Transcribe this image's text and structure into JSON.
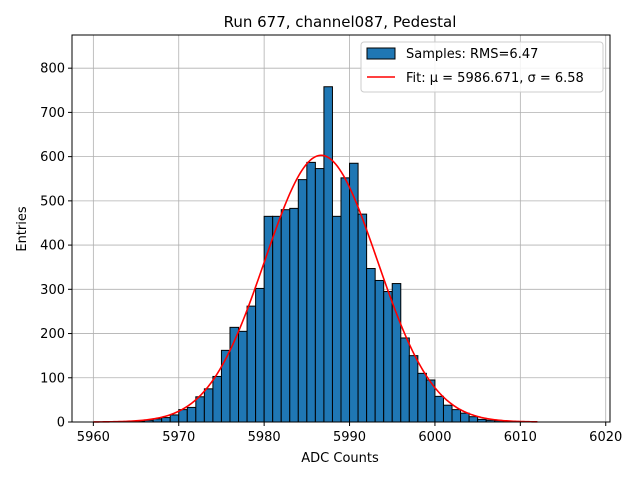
{
  "chart_data": {
    "type": "bar",
    "title": "Run 677, channel087, Pedestal",
    "xlabel": "ADC Counts",
    "ylabel": "Entries",
    "xlim": [
      5957.5,
      6020.5
    ],
    "ylim": [
      0,
      875
    ],
    "xticks": [
      5960,
      5970,
      5980,
      5990,
      6000,
      6010,
      6020
    ],
    "yticks": [
      0,
      100,
      200,
      300,
      400,
      500,
      600,
      700,
      800
    ],
    "grid": true,
    "legend_position": "top-right",
    "bin_width": 1,
    "bins_start": [
      5964,
      5965,
      5966,
      5967,
      5968,
      5969,
      5970,
      5971,
      5972,
      5973,
      5974,
      5975,
      5976,
      5977,
      5978,
      5979,
      5980,
      5981,
      5982,
      5983,
      5984,
      5985,
      5986,
      5987,
      5988,
      5989,
      5990,
      5991,
      5992,
      5993,
      5994,
      5995,
      5996,
      5997,
      5998,
      5999,
      6000,
      6001,
      6002,
      6003,
      6004,
      6005,
      6006,
      6007,
      6008,
      6009
    ],
    "series": [
      {
        "name": "Samples: RMS=6.47",
        "kind": "histogram",
        "color": "#1f77b4",
        "edgecolor": "#000000",
        "values": [
          1,
          2,
          4,
          7,
          10,
          16,
          28,
          33,
          57,
          75,
          103,
          162,
          214,
          205,
          262,
          302,
          465,
          465,
          480,
          483,
          548,
          587,
          573,
          758,
          465,
          552,
          585,
          470,
          347,
          320,
          295,
          313,
          190,
          150,
          110,
          95,
          58,
          38,
          28,
          20,
          12,
          6,
          4,
          3,
          2,
          1
        ]
      },
      {
        "name": "Fit: μ = 5986.671, σ = 6.58",
        "kind": "line",
        "color": "#ff0000",
        "mu": 5986.671,
        "sigma": 6.58,
        "amplitude": 603,
        "x_range": [
          5960,
          6012
        ]
      }
    ],
    "legend": [
      {
        "label": "Samples: RMS=6.47",
        "swatch": "box"
      },
      {
        "label": "Fit: μ = 5986.671, σ = 6.58",
        "swatch": "line"
      }
    ]
  }
}
